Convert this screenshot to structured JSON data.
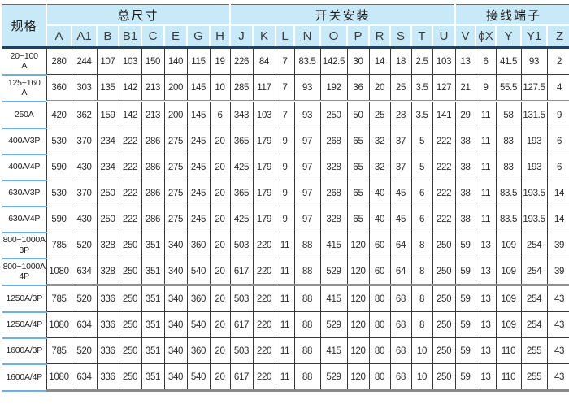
{
  "colors": {
    "header_bg": "#c8e9f8",
    "header_rule": "#1e3f6f",
    "spec_underline": "#6ab0e3",
    "grid": "#3a3a3a",
    "text": "#2a2a2a",
    "thick_rule": "#8f8f8f",
    "top_border": "#6b6b6b"
  },
  "table": {
    "spec_header": "规格",
    "groups": [
      {
        "label": "总尺寸",
        "columns": [
          "A",
          "A1",
          "B",
          "B1",
          "C",
          "E",
          "G",
          "H"
        ]
      },
      {
        "label": "开关安装",
        "columns": [
          "J",
          "K",
          "L",
          "N",
          "O",
          "P",
          "R",
          "S",
          "T",
          "U"
        ]
      },
      {
        "label": "接线端子",
        "columns": [
          "V",
          "ϕX",
          "Y",
          "Y1",
          "Z"
        ]
      }
    ],
    "rows": [
      {
        "spec_lines": [
          "20~100",
          "A"
        ],
        "values": [
          "280",
          "244",
          "107",
          "103",
          "150",
          "140",
          "115",
          "19",
          "226",
          "84",
          "7",
          "83.5",
          "142.5",
          "30",
          "14",
          "18",
          "2.5",
          "103",
          "13",
          "6",
          "41.5",
          "93",
          "2"
        ]
      },
      {
        "spec_lines": [
          "125~160",
          "A"
        ],
        "values": [
          "360",
          "303",
          "135",
          "142",
          "213",
          "200",
          "145",
          "10",
          "285",
          "117",
          "7",
          "93",
          "192",
          "36",
          "20",
          "25",
          "3.5",
          "127",
          "21",
          "9",
          "55.5",
          "127.5",
          "4"
        ]
      },
      {
        "spec_lines": [
          "250A"
        ],
        "values": [
          "420",
          "362",
          "159",
          "142",
          "213",
          "200",
          "145",
          "6",
          "343",
          "103",
          "7",
          "93",
          "250",
          "50",
          "25",
          "28",
          "3.5",
          "141",
          "29",
          "11",
          "58",
          "131.5",
          "9"
        ]
      },
      {
        "spec_lines": [
          "400A/3P"
        ],
        "values": [
          "530",
          "370",
          "234",
          "222",
          "286",
          "275",
          "245",
          "20",
          "365",
          "179",
          "9",
          "97",
          "268",
          "65",
          "32",
          "37",
          "5",
          "222",
          "38",
          "11",
          "83",
          "193",
          "6"
        ]
      },
      {
        "spec_lines": [
          "400A/4P"
        ],
        "values": [
          "590",
          "430",
          "234",
          "222",
          "286",
          "275",
          "245",
          "20",
          "425",
          "179",
          "9",
          "97",
          "328",
          "65",
          "32",
          "37",
          "5",
          "222",
          "38",
          "11",
          "83",
          "193",
          "6"
        ]
      },
      {
        "spec_lines": [
          "630A/3P"
        ],
        "values": [
          "530",
          "370",
          "250",
          "222",
          "286",
          "275",
          "245",
          "20",
          "365",
          "179",
          "9",
          "97",
          "268",
          "65",
          "40",
          "45",
          "6",
          "222",
          "38",
          "11",
          "83.5",
          "193.5",
          "14"
        ]
      },
      {
        "spec_lines": [
          "630A/4P"
        ],
        "values": [
          "590",
          "430",
          "250",
          "222",
          "286",
          "275",
          "245",
          "20",
          "425",
          "179",
          "9",
          "97",
          "328",
          "65",
          "40",
          "45",
          "6",
          "222",
          "38",
          "11",
          "83.5",
          "193.5",
          "14"
        ]
      },
      {
        "spec_lines": [
          "800~1000A",
          "3P"
        ],
        "values": [
          "785",
          "520",
          "328",
          "250",
          "351",
          "340",
          "360",
          "20",
          "503",
          "220",
          "11",
          "88",
          "415",
          "120",
          "60",
          "64",
          "8",
          "250",
          "59",
          "13",
          "109",
          "254",
          "39"
        ]
      },
      {
        "spec_lines": [
          "800~1000A",
          "4P"
        ],
        "values": [
          "1080",
          "634",
          "328",
          "250",
          "351",
          "340",
          "540",
          "20",
          "617",
          "220",
          "11",
          "88",
          "529",
          "120",
          "60",
          "64",
          "8",
          "250",
          "59",
          "13",
          "109",
          "254",
          "39"
        ]
      },
      {
        "spec_lines": [
          "1250A/3P"
        ],
        "values": [
          "785",
          "520",
          "336",
          "250",
          "351",
          "340",
          "360",
          "20",
          "503",
          "220",
          "11",
          "88",
          "415",
          "120",
          "80",
          "68",
          "8",
          "250",
          "59",
          "13",
          "109",
          "254",
          "43"
        ]
      },
      {
        "spec_lines": [
          "1250A/4P"
        ],
        "values": [
          "1080",
          "634",
          "336",
          "250",
          "351",
          "340",
          "540",
          "20",
          "617",
          "220",
          "11",
          "88",
          "529",
          "120",
          "80",
          "68",
          "8",
          "250",
          "59",
          "13",
          "109",
          "254",
          "43"
        ]
      },
      {
        "spec_lines": [
          "1600A/3P"
        ],
        "values": [
          "785",
          "520",
          "336",
          "250",
          "351",
          "340",
          "360",
          "20",
          "503",
          "220",
          "11",
          "88",
          "415",
          "120",
          "80",
          "68",
          "10",
          "250",
          "59",
          "13",
          "110",
          "255",
          "43"
        ]
      },
      {
        "spec_lines": [
          "1600A/4P"
        ],
        "values": [
          "1080",
          "634",
          "336",
          "250",
          "351",
          "340",
          "540",
          "20",
          "617",
          "220",
          "11",
          "88",
          "529",
          "120",
          "80",
          "68",
          "10",
          "250",
          "59",
          "13",
          "110",
          "255",
          "43"
        ]
      }
    ]
  }
}
